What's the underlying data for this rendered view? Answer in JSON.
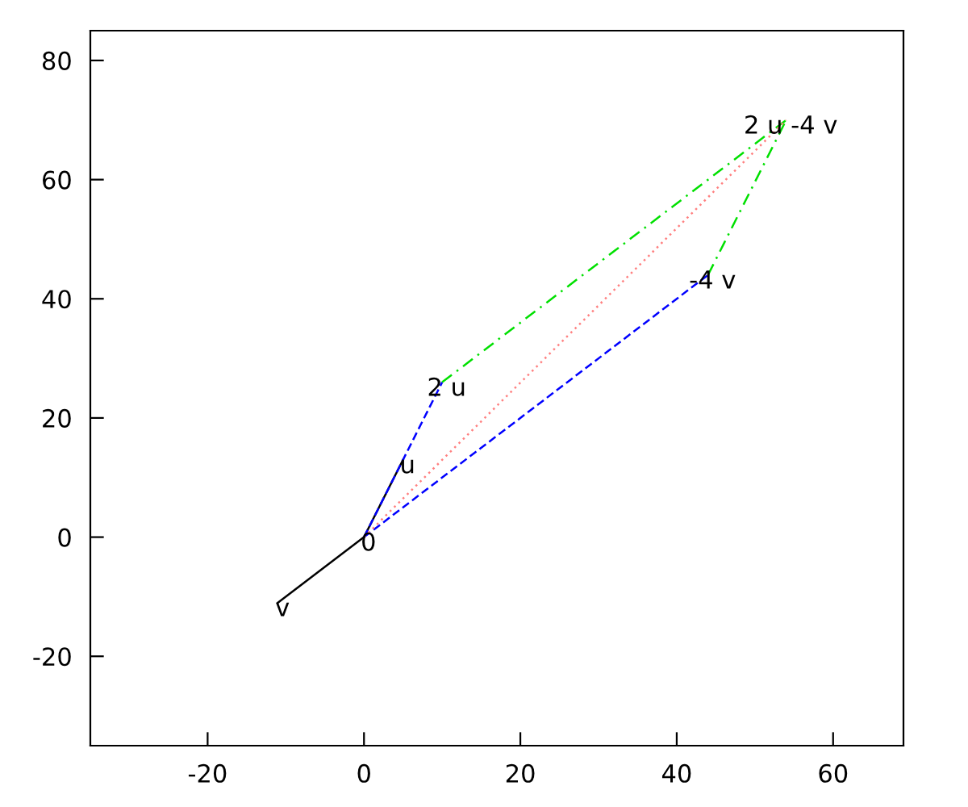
{
  "chart_data": {
    "type": "line",
    "series": [
      {
        "color": "#000000",
        "line_style": "solid",
        "x": [
          0,
          5
        ],
        "values": [
          0,
          13
        ]
      },
      {
        "color": "#000000",
        "line_style": "solid",
        "x": [
          0,
          -11
        ],
        "values": [
          0,
          -11
        ]
      },
      {
        "color": "#0000ff",
        "line_style": "dashed",
        "x": [
          0,
          10
        ],
        "values": [
          0,
          26
        ]
      },
      {
        "color": "#0000ff",
        "line_style": "dashed",
        "x": [
          0,
          44
        ],
        "values": [
          0,
          44
        ]
      },
      {
        "color": "#00e000",
        "line_style": "dashdot",
        "x": [
          10,
          54
        ],
        "values": [
          26,
          70
        ]
      },
      {
        "color": "#00e000",
        "line_style": "dashdot",
        "x": [
          44,
          54
        ],
        "values": [
          44,
          70
        ]
      },
      {
        "color": "#ff8080",
        "line_style": "dotted",
        "x": [
          0,
          54
        ],
        "values": [
          0,
          70
        ]
      }
    ],
    "annotations": [
      {
        "text": "0",
        "x": 0,
        "y": 0
      },
      {
        "text": "u",
        "x": 5,
        "y": 13
      },
      {
        "text": "v",
        "x": -11,
        "y": -11
      },
      {
        "text": "2 u",
        "x": 10,
        "y": 26
      },
      {
        "text": "-4 v",
        "x": 44,
        "y": 44
      },
      {
        "text": "2 u -4 v",
        "x": 54,
        "y": 70
      }
    ],
    "xlim": [
      -35,
      69
    ],
    "ylim": [
      -35,
      85
    ],
    "xticks": [
      -20,
      0,
      20,
      40,
      60
    ],
    "yticks": [
      -20,
      0,
      20,
      40,
      60,
      80
    ],
    "grid": false,
    "legend": false
  }
}
